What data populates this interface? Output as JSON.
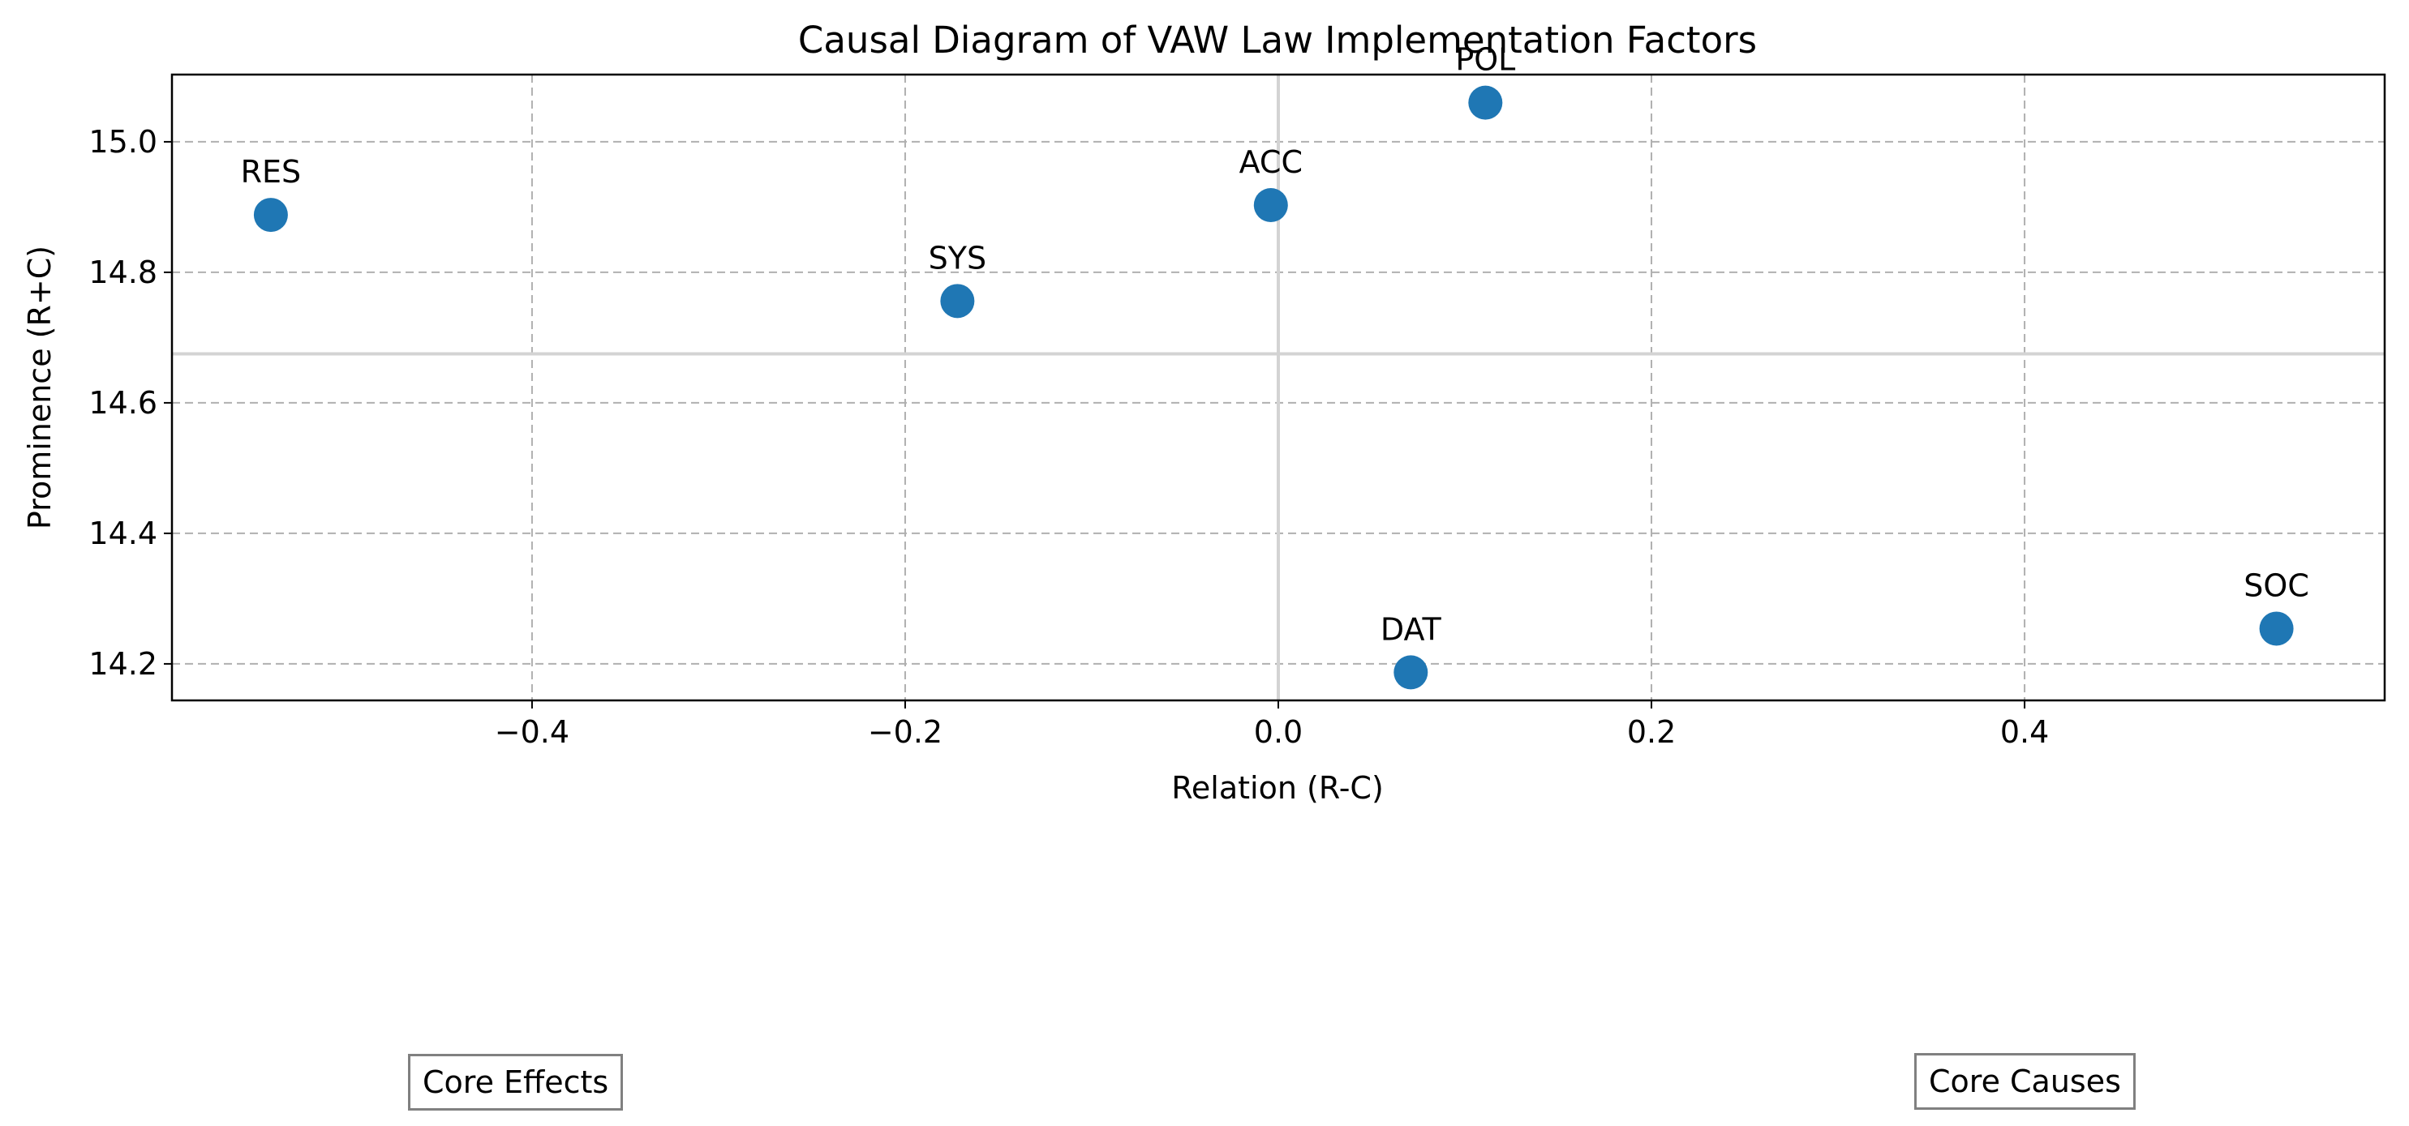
{
  "chart_data": {
    "type": "scatter",
    "title": "Causal Diagram of VAW Law Implementation Factors",
    "xlabel": "Relation (R-C)",
    "ylabel": "Prominence (R+C)",
    "xlim": [
      -0.593,
      0.593
    ],
    "ylim": [
      14.144,
      15.103
    ],
    "xticks": [
      -0.4,
      -0.2,
      0.0,
      0.2,
      0.4
    ],
    "xtick_labels": [
      "−0.4",
      "−0.2",
      "0.0",
      "0.2",
      "0.4"
    ],
    "yticks": [
      14.2,
      14.4,
      14.6,
      14.8,
      15.0
    ],
    "ytick_labels": [
      "14.2",
      "14.4",
      "14.6",
      "14.8",
      "15.0"
    ],
    "grid": true,
    "reference_lines": {
      "x": 0.0,
      "y": 14.675
    },
    "point_color": "#1f77b4",
    "points": [
      {
        "label": "RES",
        "x": -0.54,
        "y": 14.888
      },
      {
        "label": "SYS",
        "x": -0.172,
        "y": 14.756
      },
      {
        "label": "ACC",
        "x": -0.004,
        "y": 14.903
      },
      {
        "label": "POL",
        "x": 0.111,
        "y": 15.06
      },
      {
        "label": "DAT",
        "x": 0.071,
        "y": 14.187
      },
      {
        "label": "SOC",
        "x": 0.535,
        "y": 14.254
      }
    ]
  },
  "annotations": {
    "core_effects": "Core Effects",
    "core_causes": "Core Causes"
  }
}
